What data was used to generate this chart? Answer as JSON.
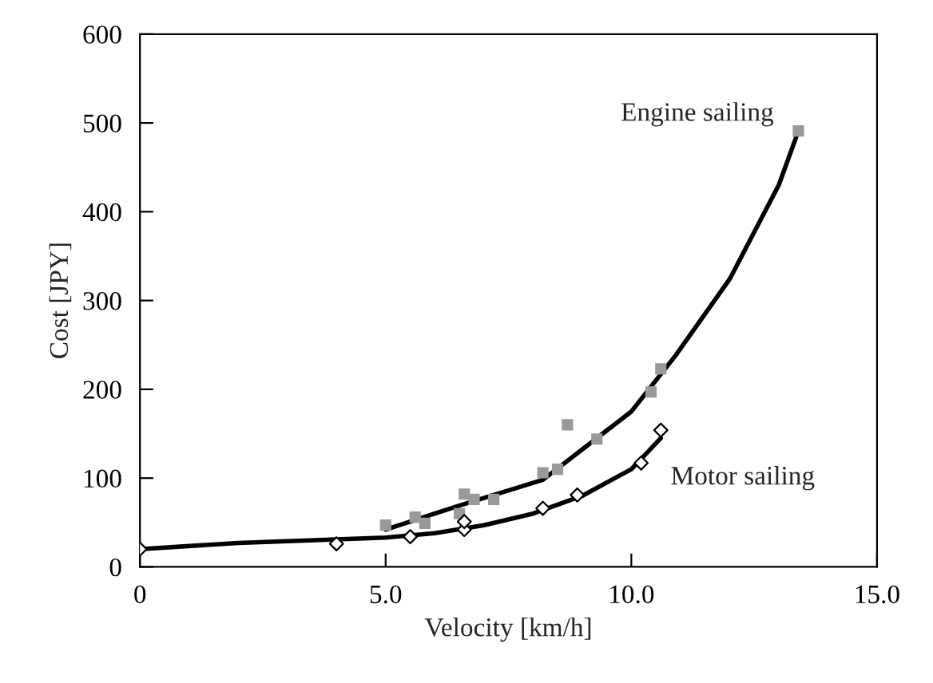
{
  "chart_data": {
    "type": "scatter",
    "xlabel": "Velocity [km/h]",
    "ylabel": "Cost [JPY]",
    "xlim": [
      0,
      15
    ],
    "xticks": [
      {
        "value": 0,
        "label": "0"
      },
      {
        "value": 5,
        "label": "5.0"
      },
      {
        "value": 10,
        "label": "10.0"
      },
      {
        "value": 15,
        "label": "15.0"
      }
    ],
    "ylim": [
      0,
      600
    ],
    "yticks": [
      0,
      100,
      200,
      300,
      400,
      500,
      600
    ],
    "grid": false,
    "legend": false,
    "series": [
      {
        "marker": "square",
        "color": "#999999",
        "x": [
          5.0,
          5.6,
          5.8,
          6.5,
          6.6,
          6.8,
          7.2,
          8.2,
          8.5,
          8.7,
          9.3,
          10.4,
          10.6,
          13.4
        ],
        "values": [
          47,
          56,
          49,
          60,
          82,
          76,
          76,
          106,
          110,
          160,
          144,
          197,
          223,
          491
        ]
      },
      {
        "marker": "diamond",
        "color": "#ffffff",
        "x": [
          0,
          4.0,
          5.5,
          6.6,
          6.6,
          8.2,
          8.9,
          10.2,
          10.6
        ],
        "values": [
          20,
          26,
          34,
          42,
          51,
          66,
          81,
          117,
          154
        ]
      },
      {
        "type": "line",
        "name": "Engine sailing",
        "color": "#000000",
        "x": [
          5.0,
          6.5,
          8.2,
          10.0,
          10.9,
          12.0,
          13.0,
          13.4
        ],
        "values": [
          42,
          69,
          98,
          175,
          238,
          324,
          430,
          491
        ]
      },
      {
        "type": "line",
        "name": "Motor sailing",
        "color": "#000000",
        "x": [
          0,
          2,
          4,
          5,
          6,
          7,
          8,
          9,
          10,
          10.6
        ],
        "values": [
          20,
          27,
          31,
          33,
          38,
          47,
          60,
          80,
          110,
          145
        ]
      }
    ]
  }
}
